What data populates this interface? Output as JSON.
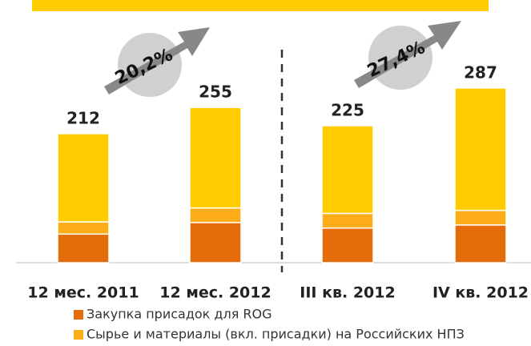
{
  "chart_data": {
    "type": "stacked_bar",
    "categories": [
      "12 мес. 2011",
      "12 мес. 2012",
      "III кв. 2012",
      "IV кв. 2012"
    ],
    "series": [
      {
        "name": "Закупка присадок для ROG",
        "color": "#e46c0a",
        "values": [
          47,
          66,
          57,
          62
        ]
      },
      {
        "name": "Сырье и материалы (вкл. присадки) на Российских НПЗ",
        "color": "#fbac18",
        "values": [
          20,
          24,
          24,
          24
        ]
      },
      {
        "color": "#ffcc00",
        "values": [
          145,
          165,
          144,
          201
        ]
      }
    ],
    "totals": [
      212,
      255,
      225,
      287
    ],
    "annotations": [
      "20,2%",
      "27,4%"
    ]
  }
}
